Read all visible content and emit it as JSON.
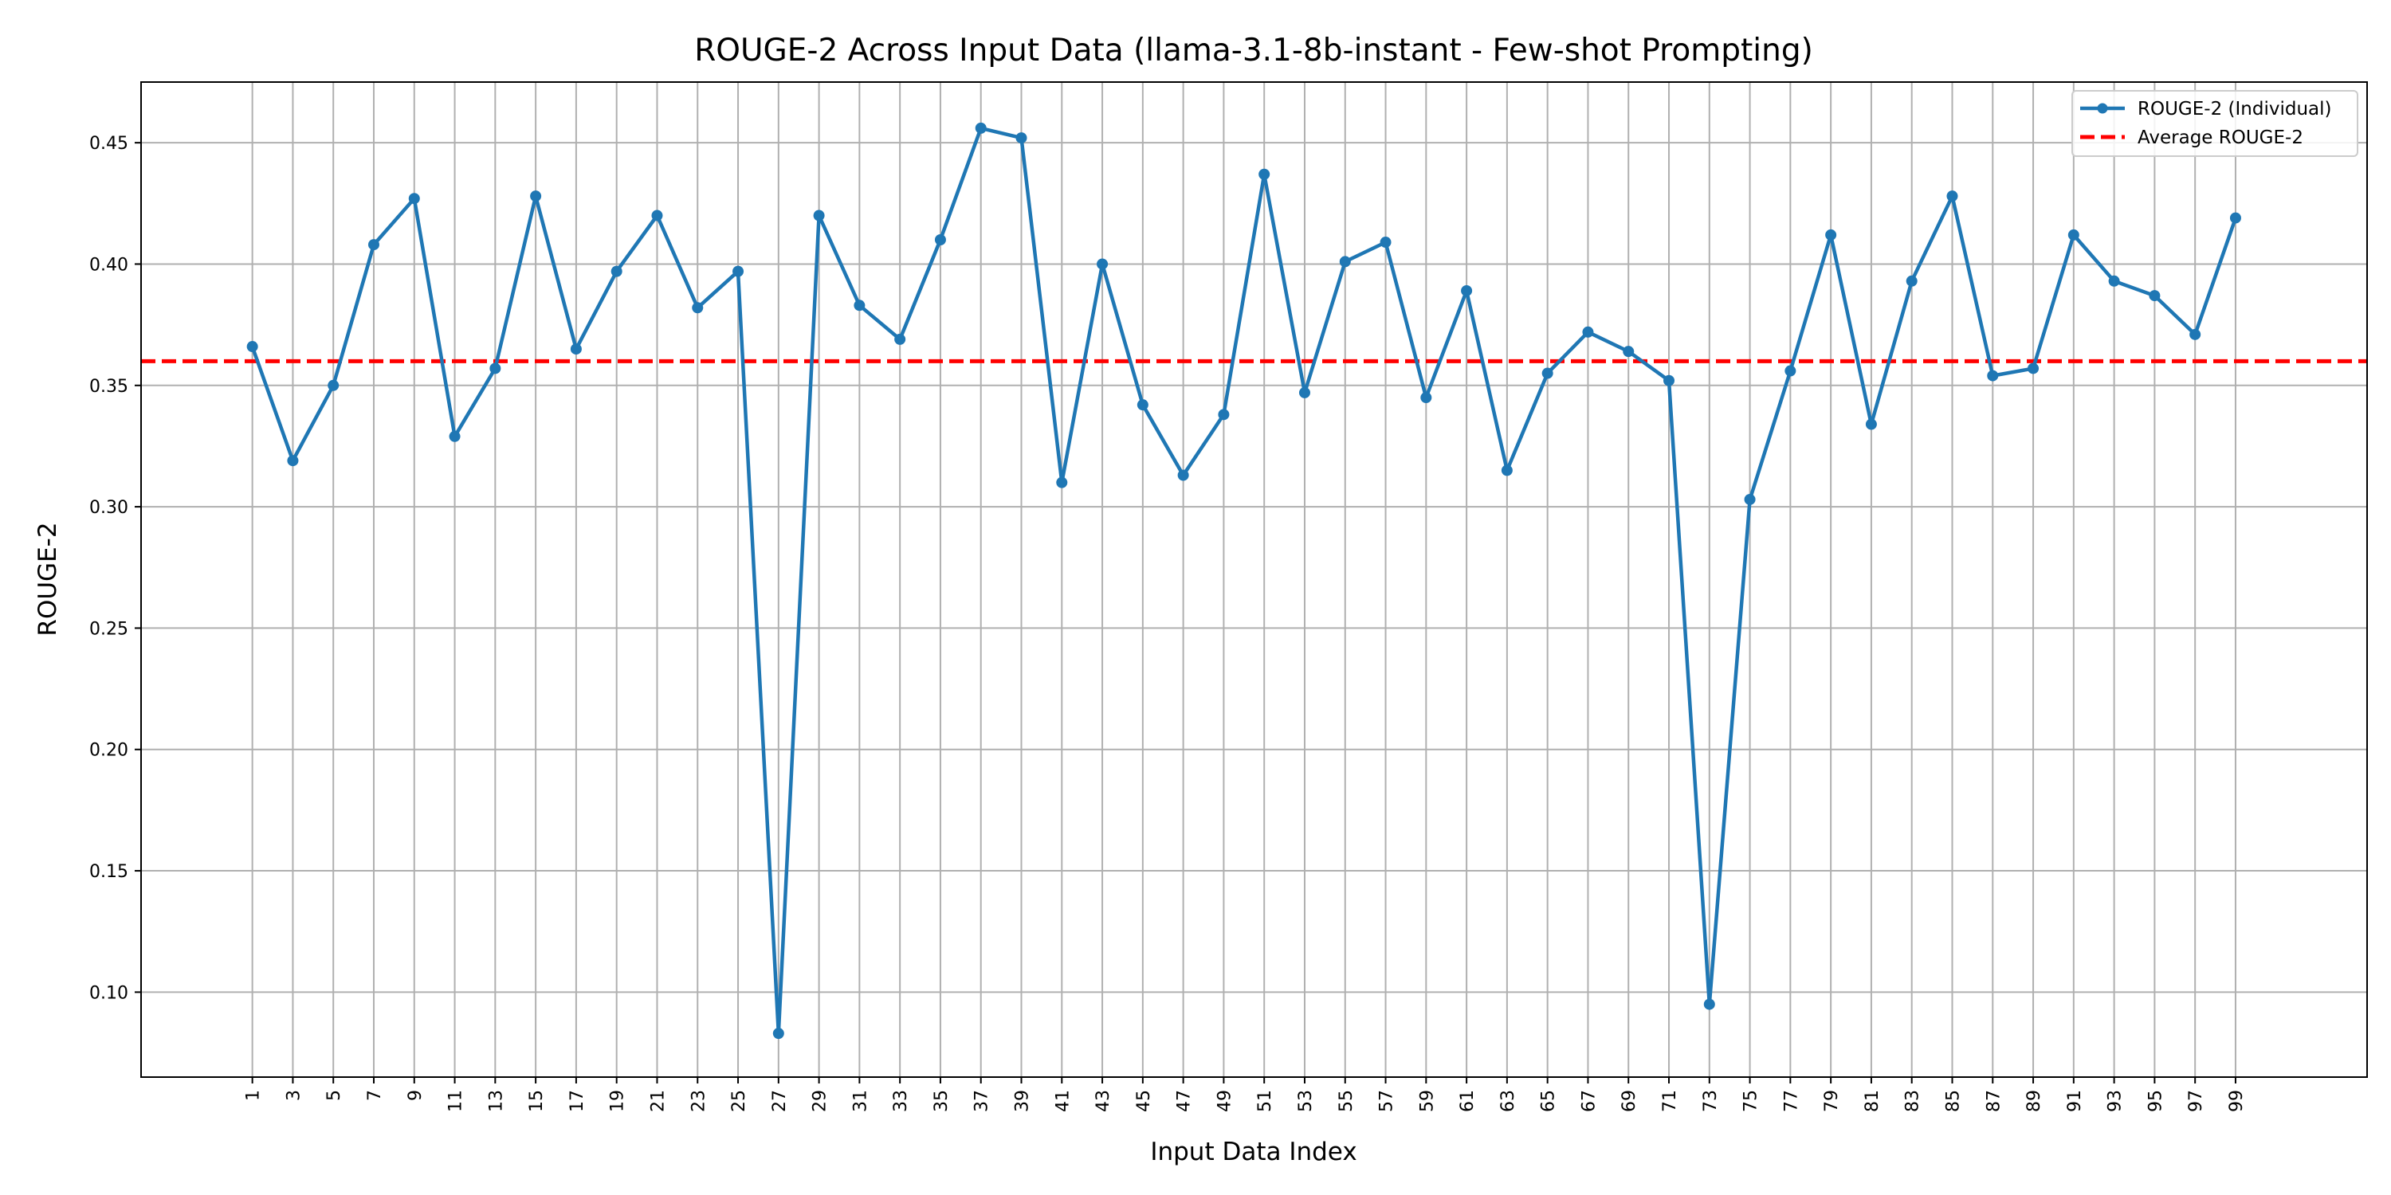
{
  "chart_data": {
    "type": "line",
    "title": "ROUGE-2 Across Input Data (llama-3.1-8b-instant - Few-shot Prompting)",
    "xlabel": "Input Data Index",
    "ylabel": "ROUGE-2",
    "xlim": [
      -4.5,
      105.5
    ],
    "ylim": [
      0.065,
      0.475
    ],
    "grid": true,
    "legend_position": "top-right",
    "x": [
      1,
      3,
      5,
      7,
      9,
      11,
      13,
      15,
      17,
      19,
      21,
      23,
      25,
      27,
      29,
      31,
      33,
      35,
      37,
      39,
      41,
      43,
      45,
      47,
      49,
      51,
      53,
      55,
      57,
      59,
      61,
      63,
      65,
      67,
      69,
      71,
      73,
      75,
      77,
      79,
      81,
      83,
      85,
      87,
      89,
      91,
      93,
      95,
      97,
      99
    ],
    "x_tick_labels": [
      "1",
      "3",
      "5",
      "7",
      "9",
      "11",
      "13",
      "15",
      "17",
      "19",
      "21",
      "23",
      "25",
      "27",
      "29",
      "31",
      "33",
      "35",
      "37",
      "39",
      "41",
      "43",
      "45",
      "47",
      "49",
      "51",
      "53",
      "55",
      "57",
      "59",
      "61",
      "63",
      "65",
      "67",
      "69",
      "71",
      "73",
      "75",
      "77",
      "79",
      "81",
      "83",
      "85",
      "87",
      "89",
      "91",
      "93",
      "95",
      "97",
      "99"
    ],
    "y_ticks": [
      0.1,
      0.15,
      0.2,
      0.25,
      0.3,
      0.35,
      0.4,
      0.45
    ],
    "y_tick_labels": [
      "0.10",
      "0.15",
      "0.20",
      "0.25",
      "0.30",
      "0.35",
      "0.40",
      "0.45"
    ],
    "series": [
      {
        "name": "ROUGE-2 (Individual)",
        "color": "#1f77b4",
        "style": "solid-with-markers",
        "values": [
          0.366,
          0.319,
          0.35,
          0.408,
          0.427,
          0.329,
          0.357,
          0.428,
          0.365,
          0.397,
          0.42,
          0.382,
          0.397,
          0.083,
          0.42,
          0.383,
          0.369,
          0.41,
          0.456,
          0.452,
          0.31,
          0.4,
          0.342,
          0.313,
          0.338,
          0.437,
          0.347,
          0.401,
          0.409,
          0.345,
          0.389,
          0.315,
          0.355,
          0.372,
          0.364,
          0.352,
          0.095,
          0.303,
          0.356,
          0.412,
          0.334,
          0.393,
          0.428,
          0.354,
          0.357,
          0.412,
          0.393,
          0.387,
          0.371,
          0.419
        ]
      },
      {
        "name": "Average ROUGE-2",
        "color": "#ff0000",
        "style": "dashed",
        "value": 0.36
      }
    ]
  }
}
